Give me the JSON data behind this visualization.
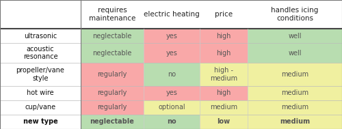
{
  "col_headers": [
    "requires\nmaintenance",
    "electric heating",
    "price",
    "handles icing\nconditions"
  ],
  "row_headers": [
    "ultrasonic",
    "acoustic\nresonance",
    "propeller/vane\nstyle",
    "hot wire",
    "cup/vane",
    "new type"
  ],
  "cells": [
    [
      "neglectable",
      "yes",
      "high",
      "well"
    ],
    [
      "neglectable",
      "yes",
      "high",
      "well"
    ],
    [
      "regularly",
      "no",
      "high -\nmedium",
      "medium"
    ],
    [
      "regularly",
      "yes",
      "high",
      "medium"
    ],
    [
      "regularly",
      "optional",
      "medium",
      "medium"
    ],
    [
      "neglectable",
      "no",
      "low",
      "medium"
    ]
  ],
  "cell_colors": [
    [
      "#b8ddb0",
      "#f9a8a8",
      "#f9a8a8",
      "#b8ddb0"
    ],
    [
      "#b8ddb0",
      "#f9a8a8",
      "#f9a8a8",
      "#b8ddb0"
    ],
    [
      "#f9a8a8",
      "#b8ddb0",
      "#f0f0a0",
      "#f0f0a0"
    ],
    [
      "#f9a8a8",
      "#f9a8a8",
      "#f9a8a8",
      "#f0f0a0"
    ],
    [
      "#f9a8a8",
      "#f0f0a0",
      "#f0f0a0",
      "#f0f0a0"
    ],
    [
      "#b8ddb0",
      "#b8ddb0",
      "#f0f0a0",
      "#f0f0a0"
    ]
  ],
  "bold_last_row": true,
  "background_color": "#ffffff",
  "font_name": "Comic Sans MS",
  "fig_width": 5.0,
  "fig_height": 1.89,
  "dpi": 100
}
